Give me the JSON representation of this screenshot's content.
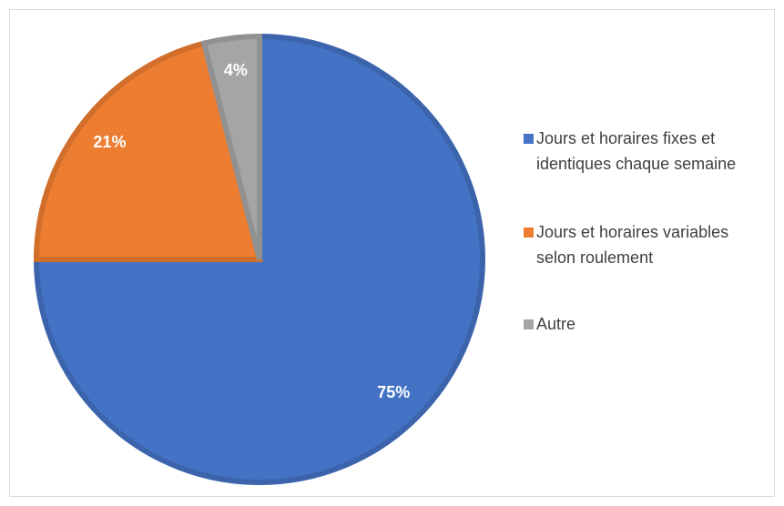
{
  "chart_data": {
    "type": "pie",
    "categories": [
      "Jours et horaires fixes et identiques chaque semaine",
      "Jours et horaires variables selon roulement",
      "Autre"
    ],
    "values": [
      75,
      21,
      4
    ],
    "value_labels": [
      "75%",
      "21%",
      "4%"
    ],
    "colors": [
      "#4472c4",
      "#ed7d31",
      "#a5a5a5"
    ],
    "legend": "right"
  }
}
